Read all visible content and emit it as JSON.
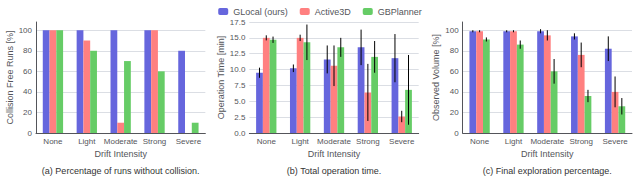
{
  "chart_data": [
    {
      "type": "bar",
      "title": "(a) Percentage of runs without collision.",
      "xlabel": "Drift Intensity",
      "ylabel": "Collision Free Runs [%]",
      "categories": [
        "None",
        "Light",
        "Moderate",
        "Strong",
        "Severe"
      ],
      "series": [
        {
          "name": "GLocal (ours)",
          "color": "#6666dd",
          "values": [
            100,
            100,
            100,
            100,
            80
          ]
        },
        {
          "name": "Active3D",
          "color": "#ff8080",
          "values": [
            100,
            90,
            10,
            100,
            0
          ]
        },
        {
          "name": "GBPlanner",
          "color": "#66cc66",
          "values": [
            100,
            80,
            70,
            60,
            10
          ]
        }
      ],
      "ylim": [
        0,
        108
      ],
      "yticks": [
        0,
        20,
        40,
        60,
        80,
        100
      ],
      "grid": true
    },
    {
      "type": "bar",
      "title": "(b) Total operation time.",
      "xlabel": "Drift Intensity",
      "ylabel": "Operation Time [min]",
      "categories": [
        "None",
        "Light",
        "Moderate",
        "Strong",
        "Severe"
      ],
      "series": [
        {
          "name": "GLocal (ours)",
          "color": "#6666dd",
          "values": [
            9.5,
            10.2,
            11.6,
            13.5,
            11.8
          ],
          "errors": [
            0.8,
            0.6,
            2.2,
            2.8,
            3.8
          ]
        },
        {
          "name": "Active3D",
          "color": "#ff8080",
          "values": [
            15.0,
            15.0,
            10.6,
            6.4,
            2.6
          ],
          "errors": [
            0.4,
            0.5,
            3.2,
            4.5,
            0.9
          ]
        },
        {
          "name": "GBPlanner",
          "color": "#66cc66",
          "values": [
            14.7,
            14.3,
            13.5,
            12.0,
            6.8
          ],
          "errors": [
            0.5,
            2.8,
            1.5,
            2.5,
            5.5
          ]
        }
      ],
      "ylim": [
        0,
        17.5
      ],
      "yticks": [
        {
          "value": 0,
          "label": "0.0"
        },
        2.5,
        {
          "value": 5,
          "label": "5.0"
        },
        7.5,
        {
          "value": 10,
          "label": "10.0"
        },
        12.5,
        {
          "value": 15,
          "label": "15.0"
        },
        17.5
      ],
      "grid": true
    },
    {
      "type": "bar",
      "title": "(c) Final exploration percentage.",
      "xlabel": "Drift Intensity",
      "ylabel": "Observed Volume [%]",
      "categories": [
        "None",
        "Light",
        "Moderate",
        "Strong",
        "Severe"
      ],
      "series": [
        {
          "name": "GLocal (ours)",
          "color": "#6666dd",
          "values": [
            99,
            99,
            99,
            94,
            82
          ],
          "errors": [
            1,
            1,
            2,
            3,
            12
          ]
        },
        {
          "name": "Active3D",
          "color": "#ff8080",
          "values": [
            99,
            99,
            95,
            76,
            40
          ],
          "errors": [
            1,
            1,
            5,
            12,
            15
          ]
        },
        {
          "name": "GBPlanner",
          "color": "#66cc66",
          "values": [
            91,
            86,
            60,
            36,
            26
          ],
          "errors": [
            2,
            4,
            12,
            6,
            8
          ]
        }
      ],
      "ylim": [
        0,
        108
      ],
      "yticks": [
        0,
        20,
        40,
        60,
        80,
        100
      ],
      "grid": true,
      "legend": "top"
    }
  ]
}
